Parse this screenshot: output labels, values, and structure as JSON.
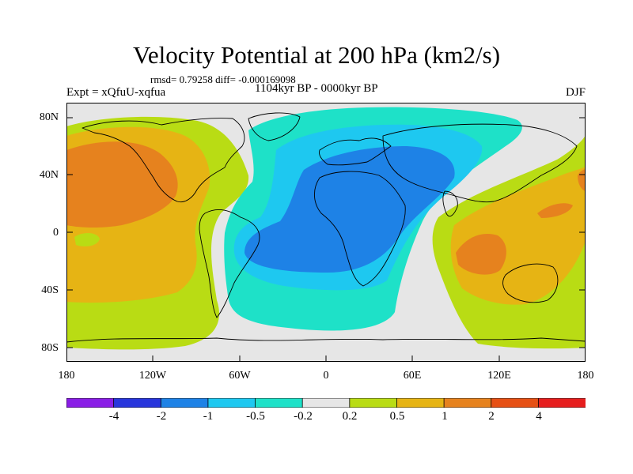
{
  "title": "Velocity Potential at 200 hPa (km2/s)",
  "stats_line": "rmsd= 0.79258 diff= -0.000169098",
  "experiment": "Expt = xQfuU-xqfua",
  "period": "1104kyr BP - 0000kyr BP",
  "season": "DJF",
  "lat_ticks": [
    "80N",
    "40N",
    "0",
    "40S",
    "80S"
  ],
  "lon_ticks": [
    "180",
    "120W",
    "60W",
    "0",
    "60E",
    "120E",
    "180"
  ],
  "colorbar": {
    "labels": [
      "-4",
      "-2",
      "-1",
      "-0.5",
      "-0.2",
      "0.2",
      "0.5",
      "1",
      "2",
      "4"
    ],
    "colors": [
      "#8a1ee6",
      "#2836dc",
      "#1e82e6",
      "#1ec8f0",
      "#1ee1c8",
      "#e6e6e6",
      "#b9dc14",
      "#e6b414",
      "#e6821e",
      "#e65014",
      "#e61e1e"
    ]
  }
}
